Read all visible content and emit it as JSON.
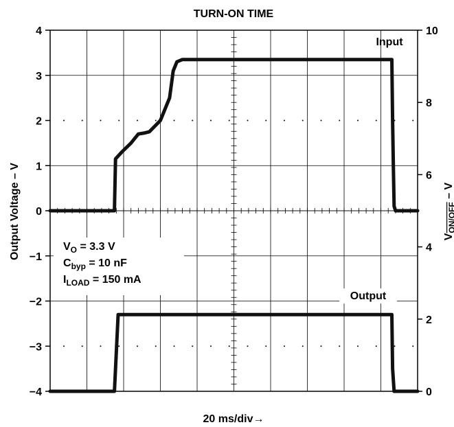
{
  "chart_data": {
    "type": "line",
    "title": "TURN-ON TIME",
    "xlabel": "20 ms/div→",
    "ylabel_left": "Output Voltage – V",
    "ylabel_right": "V(ON/OFF) – V",
    "ylabel_right_parts": {
      "base": "V",
      "sub": "ON/OFF",
      "suffix": " – V"
    },
    "x_divisions": 10,
    "y_left": {
      "min": -4,
      "max": 4,
      "ticks": [
        4,
        3,
        2,
        1,
        0,
        -1,
        -2,
        -3,
        -4
      ],
      "tick_labels": [
        "4",
        "3",
        "2",
        "1",
        "0",
        "−1",
        "−2",
        "−3",
        "−4"
      ]
    },
    "y_right": {
      "min": 0,
      "max": 10,
      "ticks": [
        10,
        8,
        6,
        4,
        2,
        0
      ],
      "tick_labels": [
        "10",
        "8",
        "6",
        "4",
        "2",
        "0"
      ]
    },
    "grid": true,
    "conditions": [
      {
        "base": "V",
        "sub": "O",
        "rest": " = 3.3 V"
      },
      {
        "base": "C",
        "sub": "byp",
        "rest": " = 10 nF"
      },
      {
        "base": "I",
        "sub": "LOAD",
        "rest": " = 150 mA"
      }
    ],
    "series": [
      {
        "name": "Input",
        "axis": "left",
        "x": [
          0,
          1.75,
          1.78,
          1.95,
          2.2,
          2.4,
          2.55,
          2.7,
          3.0,
          3.25,
          3.35,
          3.45,
          3.6,
          3.8,
          4.0,
          6.0,
          8.0,
          9.0,
          9.3,
          9.32,
          9.34,
          9.36,
          9.4,
          10.0
        ],
        "y": [
          0,
          0,
          1.15,
          1.3,
          1.5,
          1.7,
          1.72,
          1.75,
          2.0,
          2.5,
          3.1,
          3.3,
          3.35,
          3.35,
          3.35,
          3.35,
          3.35,
          3.35,
          3.35,
          2.0,
          1.0,
          0.1,
          0,
          0
        ]
      },
      {
        "name": "Output",
        "axis": "left",
        "x": [
          0,
          1.75,
          1.78,
          1.85,
          4.0,
          6.0,
          8.0,
          9.3,
          9.32,
          9.36,
          10.0
        ],
        "y": [
          -4,
          -4,
          -3.5,
          -2.3,
          -2.3,
          -2.3,
          -2.3,
          -2.3,
          -3.5,
          -4,
          -4
        ]
      }
    ]
  }
}
